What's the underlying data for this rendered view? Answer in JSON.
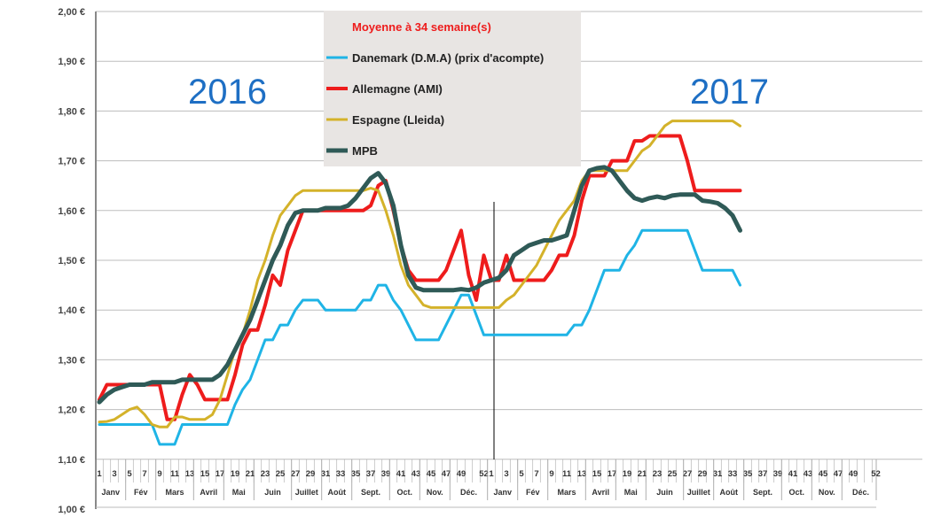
{
  "chart_data": {
    "type": "line",
    "title": "Moyenne à  34 semaine(s)",
    "year_labels": [
      "2016",
      "2017"
    ],
    "ylim": [
      1.0,
      2.0
    ],
    "y_ticks": [
      "1,00 €",
      "1,10 €",
      "1,20 €",
      "1,30 €",
      "1,40 €",
      "1,50 €",
      "1,60 €",
      "1,70 €",
      "1,80 €",
      "1,90 €",
      "2,00 €"
    ],
    "y_tick_values": [
      1.0,
      1.1,
      1.2,
      1.3,
      1.4,
      1.5,
      1.6,
      1.7,
      1.8,
      1.9,
      2.0
    ],
    "grid": true,
    "legend_position": "top-center",
    "x_weeks_per_year": 52,
    "x_week_labels": [
      "1",
      "3",
      "5",
      "7",
      "9",
      "11",
      "13",
      "15",
      "17",
      "19",
      "21",
      "23",
      "25",
      "27",
      "29",
      "31",
      "33",
      "35",
      "37",
      "39",
      "41",
      "43",
      "45",
      "47",
      "49",
      "52"
    ],
    "x_week_label_values": [
      1,
      3,
      5,
      7,
      9,
      11,
      13,
      15,
      17,
      19,
      21,
      23,
      25,
      27,
      29,
      31,
      33,
      35,
      37,
      39,
      41,
      43,
      45,
      47,
      49,
      52
    ],
    "months": [
      {
        "label": "Janv",
        "start": 1,
        "end": 4
      },
      {
        "label": "Fév",
        "start": 5,
        "end": 8
      },
      {
        "label": "Mars",
        "start": 9,
        "end": 13
      },
      {
        "label": "Avril",
        "start": 14,
        "end": 17
      },
      {
        "label": "Mai",
        "start": 18,
        "end": 21
      },
      {
        "label": "Juin",
        "start": 22,
        "end": 26
      },
      {
        "label": "Juillet",
        "start": 27,
        "end": 30
      },
      {
        "label": "Août",
        "start": 31,
        "end": 34
      },
      {
        "label": "Sept.",
        "start": 35,
        "end": 39
      },
      {
        "label": "Oct.",
        "start": 40,
        "end": 43
      },
      {
        "label": "Nov.",
        "start": 44,
        "end": 47
      },
      {
        "label": "Déc.",
        "start": 48,
        "end": 52
      }
    ],
    "x_note": "values indexed from 2016 week 1 through 2017 week 34",
    "series": [
      {
        "name": "Danemark (D.M.A) (prix d'acompte)",
        "color": "#1fb4e6",
        "width": 3,
        "values": [
          1.17,
          1.17,
          1.17,
          1.17,
          1.17,
          1.17,
          1.17,
          1.17,
          1.13,
          1.13,
          1.13,
          1.17,
          1.17,
          1.17,
          1.17,
          1.17,
          1.17,
          1.17,
          1.21,
          1.24,
          1.26,
          1.3,
          1.34,
          1.34,
          1.37,
          1.37,
          1.4,
          1.42,
          1.42,
          1.42,
          1.4,
          1.4,
          1.4,
          1.4,
          1.4,
          1.42,
          1.42,
          1.45,
          1.45,
          1.42,
          1.4,
          1.37,
          1.34,
          1.34,
          1.34,
          1.34,
          1.37,
          1.4,
          1.43,
          1.43,
          1.39,
          1.35,
          1.35,
          1.35,
          1.35,
          1.35,
          1.35,
          1.35,
          1.35,
          1.35,
          1.35,
          1.35,
          1.35,
          1.37,
          1.37,
          1.4,
          1.44,
          1.48,
          1.48,
          1.48,
          1.51,
          1.53,
          1.56,
          1.56,
          1.56,
          1.56,
          1.56,
          1.56,
          1.56,
          1.52,
          1.48,
          1.48,
          1.48,
          1.48,
          1.48,
          1.45
        ]
      },
      {
        "name": "Allemagne (AMI)",
        "color": "#ee1c1c",
        "width": 4,
        "values": [
          1.22,
          1.25,
          1.25,
          1.25,
          1.25,
          1.25,
          1.25,
          1.25,
          1.25,
          1.18,
          1.18,
          1.23,
          1.27,
          1.25,
          1.22,
          1.22,
          1.22,
          1.22,
          1.27,
          1.33,
          1.36,
          1.36,
          1.41,
          1.47,
          1.45,
          1.52,
          1.56,
          1.6,
          1.6,
          1.6,
          1.6,
          1.6,
          1.6,
          1.6,
          1.6,
          1.6,
          1.61,
          1.65,
          1.66,
          1.6,
          1.53,
          1.48,
          1.46,
          1.46,
          1.46,
          1.46,
          1.48,
          1.52,
          1.56,
          1.47,
          1.42,
          1.51,
          1.46,
          1.46,
          1.51,
          1.46,
          1.46,
          1.46,
          1.46,
          1.46,
          1.48,
          1.51,
          1.51,
          1.55,
          1.62,
          1.67,
          1.67,
          1.67,
          1.7,
          1.7,
          1.7,
          1.74,
          1.74,
          1.75,
          1.75,
          1.75,
          1.75,
          1.75,
          1.7,
          1.64,
          1.64,
          1.64,
          1.64,
          1.64,
          1.64,
          1.64
        ]
      },
      {
        "name": "Espagne (Lleida)",
        "color": "#d4b22a",
        "width": 3,
        "values": [
          1.175,
          1.176,
          1.18,
          1.19,
          1.2,
          1.205,
          1.19,
          1.17,
          1.165,
          1.165,
          1.185,
          1.185,
          1.18,
          1.18,
          1.18,
          1.19,
          1.22,
          1.27,
          1.32,
          1.35,
          1.4,
          1.46,
          1.5,
          1.55,
          1.59,
          1.61,
          1.63,
          1.64,
          1.64,
          1.64,
          1.64,
          1.64,
          1.64,
          1.64,
          1.64,
          1.64,
          1.645,
          1.64,
          1.6,
          1.55,
          1.49,
          1.45,
          1.43,
          1.41,
          1.405,
          1.405,
          1.405,
          1.405,
          1.405,
          1.405,
          1.405,
          1.405,
          1.405,
          1.405,
          1.42,
          1.43,
          1.45,
          1.47,
          1.49,
          1.52,
          1.55,
          1.58,
          1.6,
          1.62,
          1.66,
          1.68,
          1.68,
          1.68,
          1.68,
          1.68,
          1.68,
          1.7,
          1.72,
          1.73,
          1.75,
          1.77,
          1.78,
          1.78,
          1.78,
          1.78,
          1.78,
          1.78,
          1.78,
          1.78,
          1.78,
          1.77
        ]
      },
      {
        "name": "MPB",
        "color": "#2f5a57",
        "width": 5,
        "values": [
          1.215,
          1.23,
          1.24,
          1.245,
          1.25,
          1.25,
          1.25,
          1.255,
          1.255,
          1.255,
          1.255,
          1.26,
          1.26,
          1.26,
          1.26,
          1.26,
          1.27,
          1.29,
          1.32,
          1.35,
          1.38,
          1.42,
          1.46,
          1.5,
          1.53,
          1.57,
          1.595,
          1.6,
          1.6,
          1.6,
          1.605,
          1.605,
          1.605,
          1.61,
          1.625,
          1.645,
          1.665,
          1.675,
          1.655,
          1.61,
          1.53,
          1.47,
          1.445,
          1.44,
          1.44,
          1.44,
          1.44,
          1.44,
          1.442,
          1.44,
          1.445,
          1.455,
          1.46,
          1.465,
          1.48,
          1.51,
          1.52,
          1.53,
          1.535,
          1.54,
          1.54,
          1.545,
          1.55,
          1.6,
          1.65,
          1.68,
          1.685,
          1.687,
          1.68,
          1.66,
          1.64,
          1.625,
          1.62,
          1.625,
          1.628,
          1.625,
          1.63,
          1.632,
          1.632,
          1.632,
          1.62,
          1.618,
          1.615,
          1.605,
          1.59,
          1.56
        ]
      }
    ]
  }
}
